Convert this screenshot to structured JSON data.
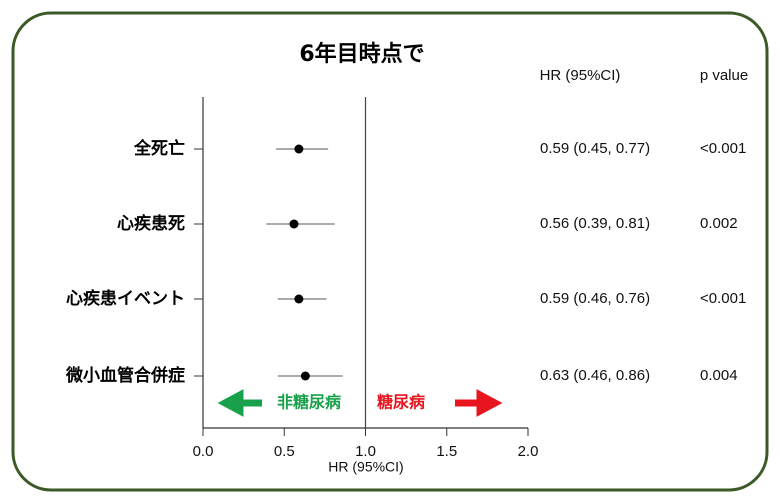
{
  "chart_data": {
    "type": "forest",
    "title": "6年目時点で",
    "xlabel": "HR (95%CI)",
    "column_headers": [
      "HR (95%CI)",
      "p value"
    ],
    "categories": [
      "全死亡",
      "心疾患死",
      "心疾患イベント",
      "微小血管合併症"
    ],
    "values": [
      0.59,
      0.56,
      0.59,
      0.63
    ],
    "lower": [
      0.45,
      0.39,
      0.46,
      0.46
    ],
    "upper": [
      0.77,
      0.81,
      0.76,
      0.86
    ],
    "value_labels": [
      "0.59 (0.45, 0.77)",
      "0.56 (0.39, 0.81)",
      "0.59 (0.46, 0.76)",
      "0.63 (0.46, 0.86)"
    ],
    "p_values": [
      "<0.001",
      "0.002",
      "<0.001",
      "0.004"
    ],
    "xlim": [
      0,
      2
    ],
    "xticks": [
      {
        "value": 0,
        "label": "0.0"
      },
      0.5,
      {
        "value": 1,
        "label": "1.0"
      },
      1.5,
      {
        "value": 2,
        "label": "2.0"
      }
    ],
    "reference_line": 1,
    "annotations": [
      {
        "text": "非糖尿病",
        "color": "#19a04b"
      },
      {
        "text": "糖尿病",
        "color": "#e8141e"
      }
    ]
  }
}
